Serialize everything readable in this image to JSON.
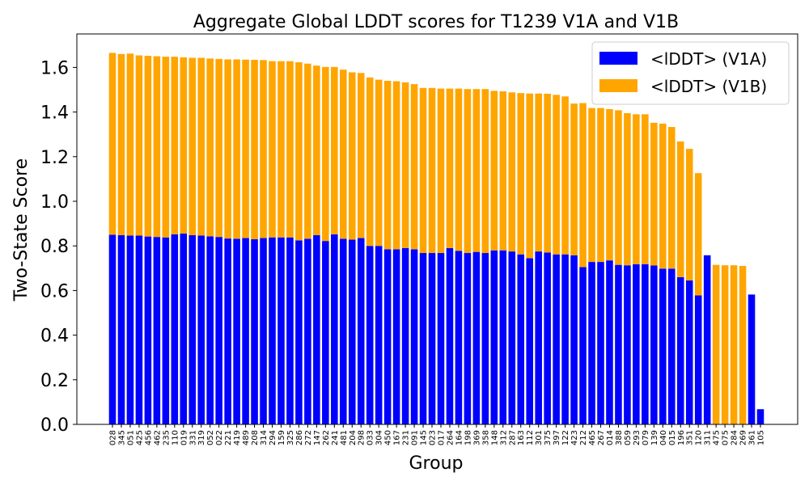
{
  "chart_data": {
    "type": "bar",
    "stacked": true,
    "title": "Aggregate Global LDDT scores for T1239 V1A and V1B",
    "xlabel": "Group",
    "ylabel": "Two-State Score",
    "ylim": [
      0,
      1.75
    ],
    "yticks": [
      0.0,
      0.2,
      0.4,
      0.6,
      0.8,
      1.0,
      1.2,
      1.4,
      1.6
    ],
    "ytick_labels": [
      "0.0",
      "0.2",
      "0.4",
      "0.6",
      "0.8",
      "1.0",
      "1.2",
      "1.4",
      "1.6"
    ],
    "grid": false,
    "legend_position": "top-right",
    "categories": [
      "028",
      "345",
      "051",
      "425",
      "456",
      "462",
      "235",
      "110",
      "019",
      "331",
      "319",
      "052",
      "022",
      "221",
      "419",
      "489",
      "208",
      "314",
      "294",
      "159",
      "325",
      "286",
      "272",
      "147",
      "262",
      "241",
      "481",
      "204",
      "298",
      "033",
      "304",
      "450",
      "167",
      "231",
      "091",
      "145",
      "023",
      "017",
      "264",
      "164",
      "198",
      "369",
      "358",
      "148",
      "312",
      "287",
      "163",
      "112",
      "301",
      "375",
      "397",
      "122",
      "423",
      "212",
      "465",
      "267",
      "014",
      "388",
      "059",
      "293",
      "079",
      "139",
      "040",
      "015",
      "196",
      "351",
      "120",
      "311",
      "475",
      "075",
      "284",
      "269",
      "361",
      "105"
    ],
    "series": [
      {
        "name": "<lDDT> (V1A)",
        "color": "#0000ff",
        "values": [
          0.85,
          0.848,
          0.846,
          0.846,
          0.842,
          0.84,
          0.838,
          0.852,
          0.855,
          0.848,
          0.846,
          0.843,
          0.84,
          0.833,
          0.832,
          0.835,
          0.83,
          0.835,
          0.838,
          0.838,
          0.838,
          0.825,
          0.832,
          0.848,
          0.822,
          0.852,
          0.832,
          0.828,
          0.835,
          0.8,
          0.8,
          0.785,
          0.785,
          0.79,
          0.785,
          0.768,
          0.768,
          0.768,
          0.79,
          0.778,
          0.768,
          0.773,
          0.768,
          0.78,
          0.78,
          0.775,
          0.762,
          0.745,
          0.775,
          0.77,
          0.762,
          0.762,
          0.758,
          0.705,
          0.728,
          0.728,
          0.735,
          0.715,
          0.713,
          0.718,
          0.718,
          0.712,
          0.698,
          0.698,
          0.66,
          0.645,
          0.578,
          0.758,
          0,
          0,
          0,
          0,
          0.582,
          0.068
        ]
      },
      {
        "name": "<lDDT> (V1B)",
        "color": "#ffa500",
        "values": [
          0.815,
          0.812,
          0.816,
          0.808,
          0.81,
          0.81,
          0.81,
          0.796,
          0.79,
          0.795,
          0.797,
          0.797,
          0.798,
          0.803,
          0.804,
          0.8,
          0.804,
          0.798,
          0.79,
          0.79,
          0.79,
          0.798,
          0.785,
          0.76,
          0.78,
          0.75,
          0.758,
          0.75,
          0.74,
          0.755,
          0.745,
          0.755,
          0.753,
          0.743,
          0.74,
          0.74,
          0.74,
          0.737,
          0.715,
          0.727,
          0.735,
          0.73,
          0.735,
          0.715,
          0.713,
          0.713,
          0.723,
          0.738,
          0.708,
          0.712,
          0.715,
          0.708,
          0.68,
          0.735,
          0.69,
          0.69,
          0.678,
          0.693,
          0.682,
          0.672,
          0.672,
          0.64,
          0.65,
          0.635,
          0.608,
          0.59,
          0.548,
          0,
          0.715,
          0.713,
          0.713,
          0.71,
          0,
          0
        ]
      }
    ]
  }
}
